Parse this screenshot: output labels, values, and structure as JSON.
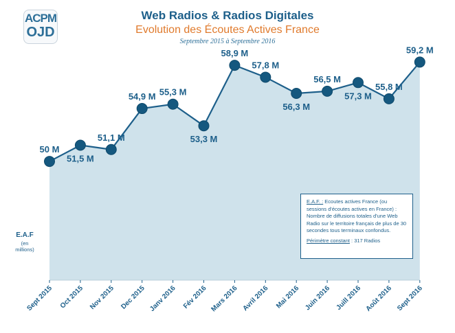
{
  "logo": {
    "line1": "ACPM",
    "line2": "OJD"
  },
  "header": {
    "title": "Web Radios & Radios Digitales",
    "subtitle": "Evolution des Écoutes Actives France",
    "subsubtitle": "Septembre 2015 à Septembre 2016"
  },
  "y_axis": {
    "label": "E.A.F",
    "unit": "(en millions)"
  },
  "note": {
    "definition_label": "E.A.F. :",
    "definition_text": " Ecoutes actives France (ou sessions d'écoutes actives en France) : Nombre de diffusions totales d'une Web Radio sur le territoire français de plus de 30 secondes tous terminaux confondus.",
    "scope_label": "Périmètre constant",
    "scope_text": " : 317 Radios"
  },
  "chart_data": {
    "type": "area",
    "title": "Web Radios & Radios Digitales",
    "subtitle": "Evolution des Écoutes Actives France",
    "ylabel": "E.A.F (en millions)",
    "categories": [
      "Sept 2015",
      "Oct 2015",
      "Nov 2015",
      "Dec 2015",
      "Janv 2016",
      "Fév 2016",
      "Mars 2016",
      "Avril 2016",
      "Mai 2016",
      "Juin 2016",
      "Juill 2016",
      "Août 2016",
      "Sept 2016"
    ],
    "values": [
      50,
      51.5,
      51.1,
      54.9,
      55.3,
      53.3,
      58.9,
      57.8,
      56.3,
      56.5,
      57.3,
      55.8,
      59.2
    ],
    "labels": [
      "50 M",
      "51,5 M",
      "51,1 M",
      "54,9 M",
      "55,3 M",
      "53,3 M",
      "58,9 M",
      "57,8 M",
      "56,3 M",
      "56,5 M",
      "57,3 M",
      "55,8 M",
      "59,2 M"
    ],
    "label_positions": [
      "above",
      "below",
      "above",
      "above",
      "above",
      "below",
      "above",
      "above",
      "below",
      "above",
      "below",
      "above",
      "above"
    ],
    "ylim": [
      39,
      60.5
    ],
    "grid": false,
    "legend": "none",
    "colors": {
      "line": "#1d5f8a",
      "marker": "#15587f",
      "fill": "#cfe2eb",
      "text": "#1d5f8a"
    }
  }
}
